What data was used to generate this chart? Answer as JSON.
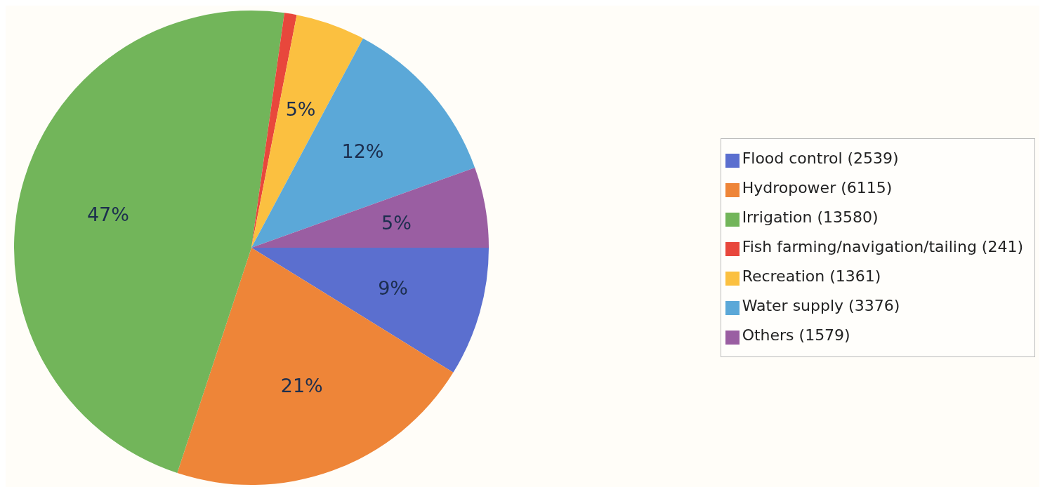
{
  "chart_data": {
    "type": "pie",
    "categories": [
      "Flood control (2539)",
      "Hydropower (6115)",
      "Irrigation (13580)",
      "Fish farming/navigation/tailing (241)",
      "Recreation (1361)",
      "Water supply (3376)",
      "Others (1579)"
    ],
    "values": [
      8.82,
      21.24,
      47.16,
      0.84,
      4.73,
      11.73,
      5.48
    ],
    "colors": [
      "#5b6fcf",
      "#ee8538",
      "#72b55a",
      "#e8473c",
      "#fbc040",
      "#5ba8d8",
      "#9a5ea2"
    ],
    "value_labels": [
      "9%",
      "21%",
      "47%",
      null,
      "5%",
      "12%",
      "5%"
    ],
    "legend": "right"
  }
}
